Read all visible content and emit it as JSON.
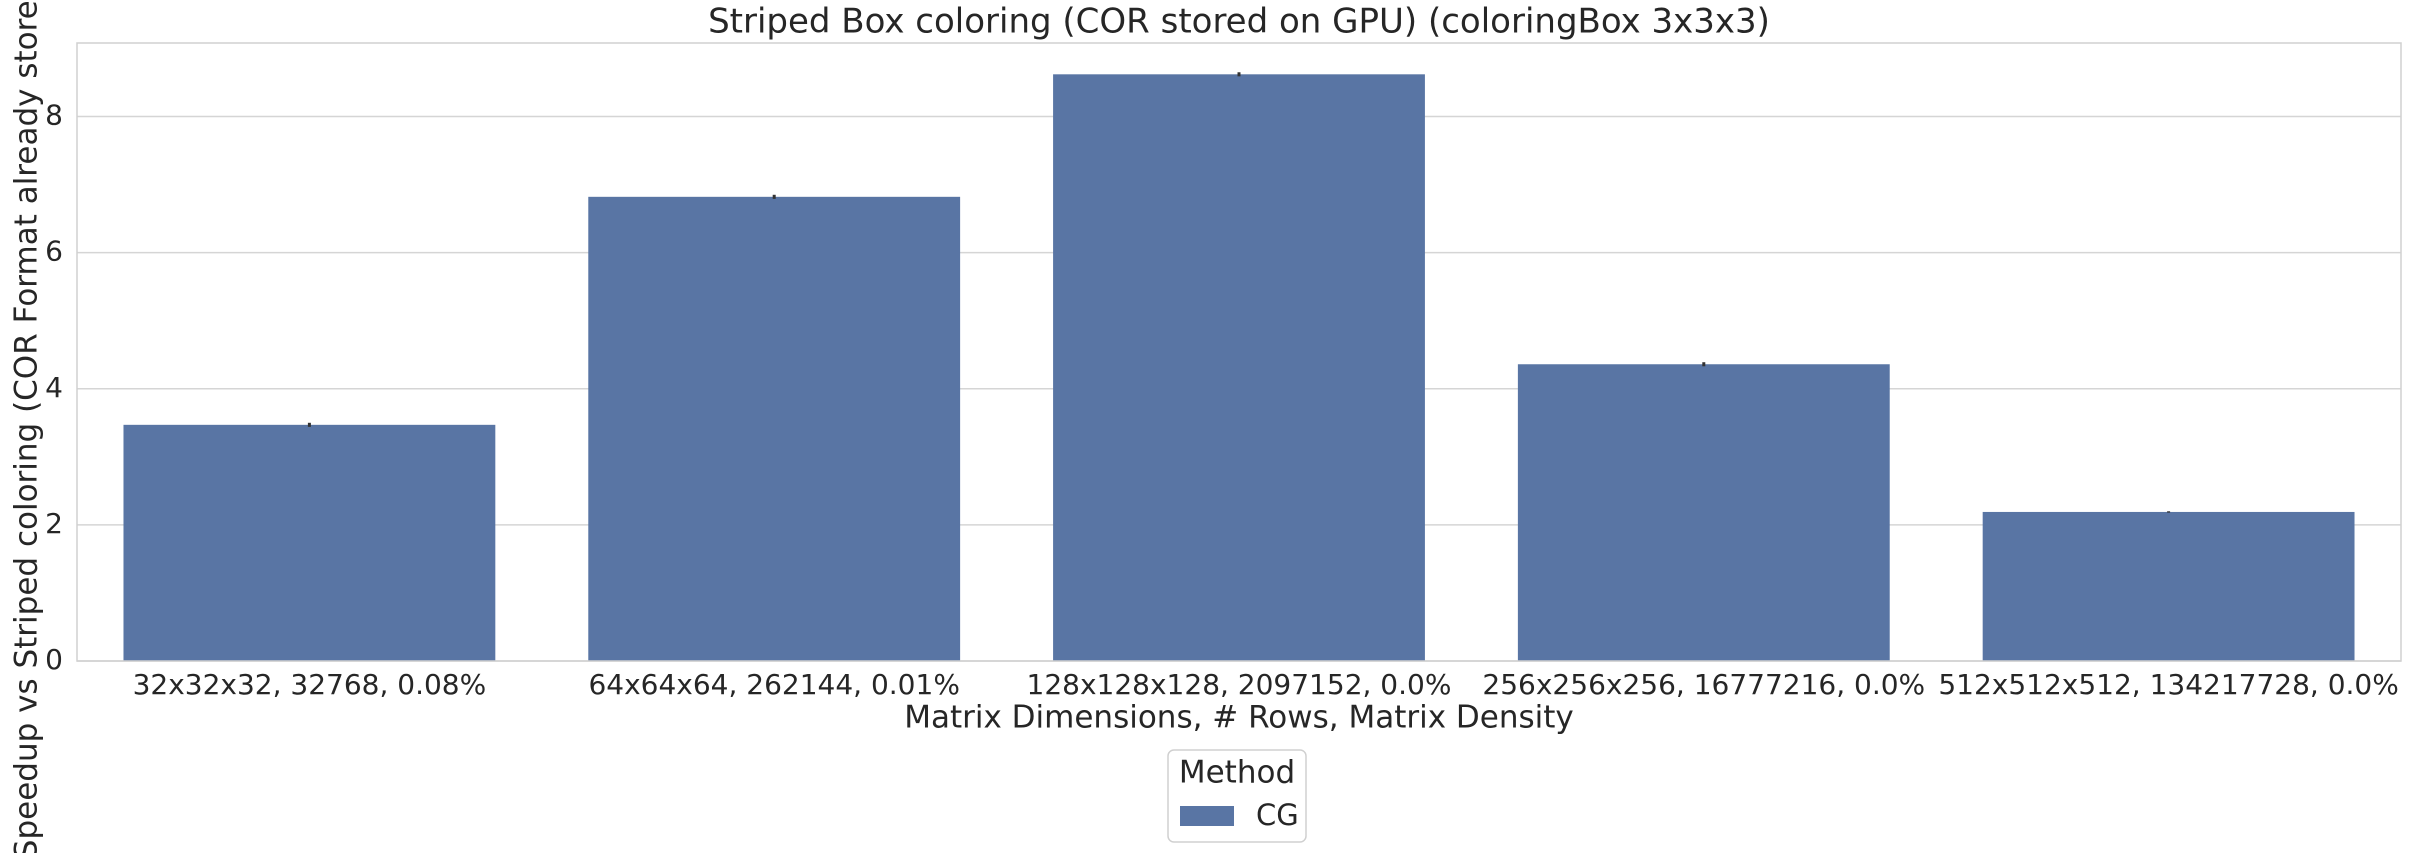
{
  "chart_data": {
    "type": "bar",
    "title": "Striped Box coloring (COR stored on GPU) (coloringBox 3x3x3)",
    "x_label": "Matrix Dimensions, # Rows, Matrix Density",
    "y_label": "Speedup vs Striped coloring (COR Format already stored on GPU)",
    "categories": [
      "32x32x32, 32768, 0.08%",
      "64x64x64, 262144, 0.01%",
      "128x128x128, 2097152, 0.0%",
      "256x256x256, 16777216, 0.0%",
      "512x512x512, 134217728, 0.0%"
    ],
    "series": [
      {
        "name": "CG",
        "color": "#5975a4",
        "values": [
          3.47,
          6.82,
          8.62,
          4.36,
          2.19
        ],
        "errors": [
          0.03,
          0.03,
          0.03,
          0.03,
          0.01
        ]
      }
    ],
    "legend_title": "Method",
    "legend_position": "bottom",
    "ylim": [
      0,
      9.08
    ],
    "yticks": [
      0,
      2,
      4,
      6,
      8
    ],
    "grid": true
  }
}
